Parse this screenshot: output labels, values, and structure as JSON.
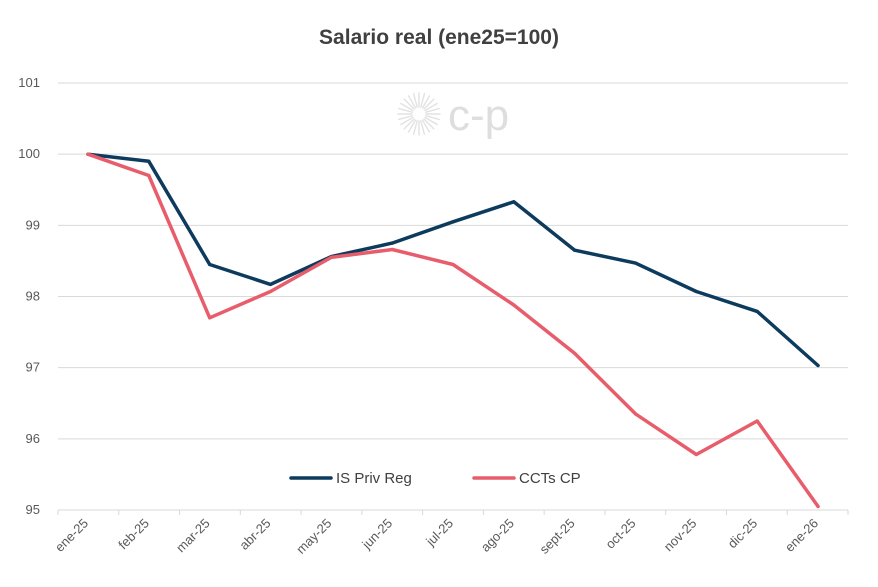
{
  "chart_data": {
    "type": "line",
    "title": "Salario real (ene25=100)",
    "xlabel": "",
    "ylabel": "",
    "categories": [
      "ene-25",
      "feb-25",
      "mar-25",
      "abr-25",
      "may-25",
      "jun-25",
      "jul-25",
      "ago-25",
      "sept-25",
      "oct-25",
      "nov-25",
      "dic-25",
      "ene-26"
    ],
    "ylim": [
      95,
      101
    ],
    "yticks": [
      "95",
      "96",
      "97",
      "98",
      "99",
      "100",
      "101"
    ],
    "grid": true,
    "legend_position": "bottom-inside",
    "series": [
      {
        "name": "IS Priv Reg",
        "color": "#0d3b5e",
        "values": [
          100.0,
          99.9,
          98.45,
          98.17,
          98.56,
          98.75,
          99.05,
          99.33,
          98.65,
          98.47,
          98.07,
          97.79,
          97.03
        ]
      },
      {
        "name": "CCTs CP",
        "color": "#e85d6c",
        "values": [
          100.0,
          99.7,
          97.7,
          98.07,
          98.55,
          98.66,
          98.45,
          97.88,
          97.2,
          96.35,
          95.78,
          96.25,
          95.05
        ]
      }
    ]
  },
  "watermark": {
    "text": "c-p"
  }
}
